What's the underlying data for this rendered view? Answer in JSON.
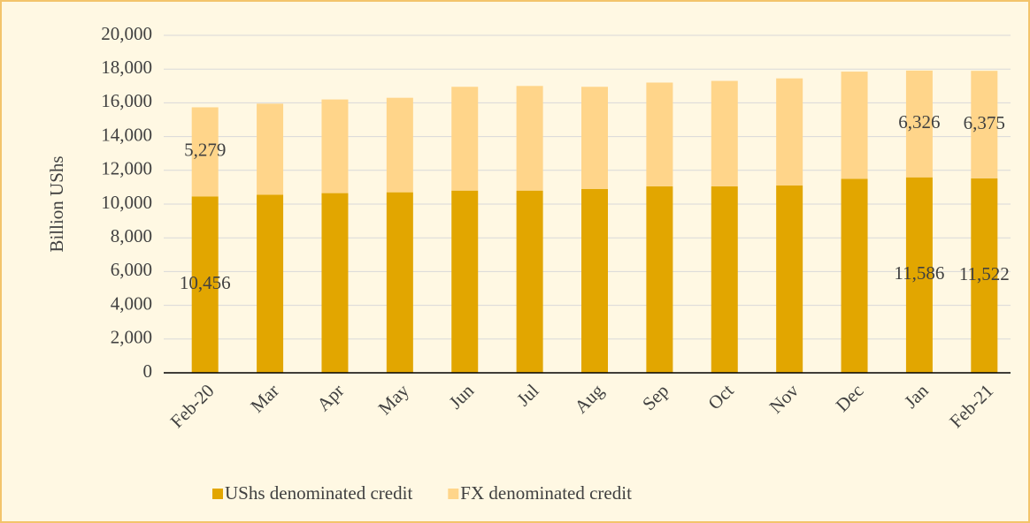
{
  "chart_data": {
    "type": "stacked_bar",
    "y_axis_label": "Billion UShs",
    "categories": [
      "Feb-20",
      "Mar",
      "Apr",
      "May",
      "Jun",
      "Jul",
      "Aug",
      "Sep",
      "Oct",
      "Nov",
      "Dec",
      "Jan",
      "Feb-21"
    ],
    "series": [
      {
        "name": "UShs denominated credit",
        "color": "#e2a600",
        "values": [
          10456,
          10550,
          10650,
          10700,
          10800,
          10800,
          10900,
          11050,
          11050,
          11100,
          11500,
          11586,
          11522
        ],
        "value_labels": [
          "10,456",
          null,
          null,
          null,
          null,
          null,
          null,
          null,
          null,
          null,
          null,
          "11,586",
          "11,522"
        ]
      },
      {
        "name": "FX denominated credit",
        "color": "#ffd58a",
        "values": [
          5279,
          5400,
          5550,
          5600,
          6150,
          6200,
          6050,
          6150,
          6250,
          6350,
          6350,
          6326,
          6375
        ],
        "value_labels": [
          "5,279",
          null,
          null,
          null,
          null,
          null,
          null,
          null,
          null,
          null,
          null,
          "6,326",
          "6,375"
        ]
      }
    ],
    "ylim": [
      0,
      20000
    ],
    "yticks": [
      {
        "value": 0,
        "label": "0"
      },
      {
        "value": 2000,
        "label": "2,000"
      },
      {
        "value": 4000,
        "label": "4,000"
      },
      {
        "value": 6000,
        "label": "6,000"
      },
      {
        "value": 8000,
        "label": "8,000"
      },
      {
        "value": 10000,
        "label": "10,000"
      },
      {
        "value": 12000,
        "label": "12,000"
      },
      {
        "value": 14000,
        "label": "14,000"
      },
      {
        "value": 16000,
        "label": "16,000"
      },
      {
        "value": 18000,
        "label": "18,000"
      },
      {
        "value": 20000,
        "label": "20,000"
      }
    ],
    "grid": true,
    "legend": "bottom"
  }
}
